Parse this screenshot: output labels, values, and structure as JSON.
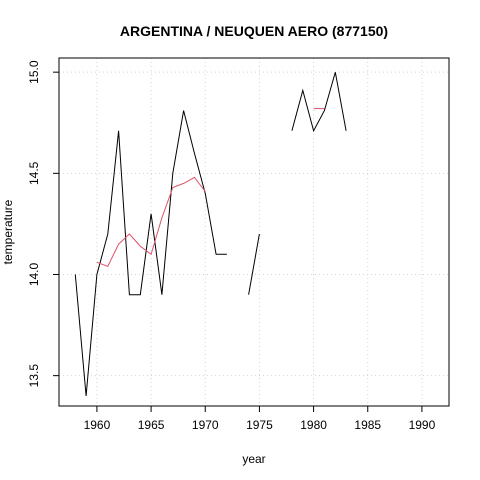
{
  "chart_data": {
    "type": "line",
    "title": "ARGENTINA / NEUQUEN AERO (877150)",
    "xlabel": "year",
    "ylabel": "temperature",
    "xlim": [
      1956.5,
      1992.5
    ],
    "ylim": [
      13.35,
      15.07
    ],
    "x_ticks": [
      1960,
      1965,
      1970,
      1975,
      1980,
      1985,
      1990
    ],
    "y_ticks": [
      13.5,
      14.0,
      14.5,
      15.0
    ],
    "x_tick_labels": [
      "1960",
      "1965",
      "1970",
      "1975",
      "1980",
      "1985",
      "1990"
    ],
    "y_tick_labels": [
      "13.5",
      "14.0",
      "14.5",
      "15.0"
    ],
    "grid": true,
    "colors": {
      "annual": "#000000",
      "smoothed": "#df536b",
      "grid": "#d3d3d3"
    },
    "series": [
      {
        "style": "annual",
        "segments": [
          [
            [
              1958,
              14.0
            ],
            [
              1959,
              13.4
            ],
            [
              1960,
              14.0
            ],
            [
              1961,
              14.2
            ],
            [
              1962,
              14.71
            ],
            [
              1963,
              13.9
            ],
            [
              1964,
              13.9
            ],
            [
              1965,
              14.3
            ],
            [
              1966,
              13.9
            ],
            [
              1967,
              14.5
            ],
            [
              1968,
              14.81
            ],
            [
              1969,
              14.6
            ],
            [
              1970,
              14.4
            ],
            [
              1971,
              14.1
            ],
            [
              1972,
              14.1
            ]
          ],
          [
            [
              1974,
              13.9
            ],
            [
              1975,
              14.2
            ]
          ],
          [
            [
              1978,
              14.71
            ],
            [
              1979,
              14.91
            ],
            [
              1980,
              14.71
            ],
            [
              1981,
              14.81
            ],
            [
              1982,
              15.0
            ],
            [
              1983,
              14.71
            ]
          ]
        ]
      },
      {
        "style": "smoothed",
        "segments": [
          [
            [
              1960,
              14.06
            ],
            [
              1961,
              14.04
            ],
            [
              1962,
              14.15
            ],
            [
              1963,
              14.2
            ],
            [
              1964,
              14.14
            ],
            [
              1965,
              14.1
            ],
            [
              1966,
              14.28
            ],
            [
              1967,
              14.43
            ],
            [
              1968,
              14.45
            ],
            [
              1969,
              14.48
            ],
            [
              1970,
              14.41
            ]
          ],
          [
            [
              1980,
              14.82
            ],
            [
              1981,
              14.82
            ]
          ]
        ]
      }
    ]
  }
}
